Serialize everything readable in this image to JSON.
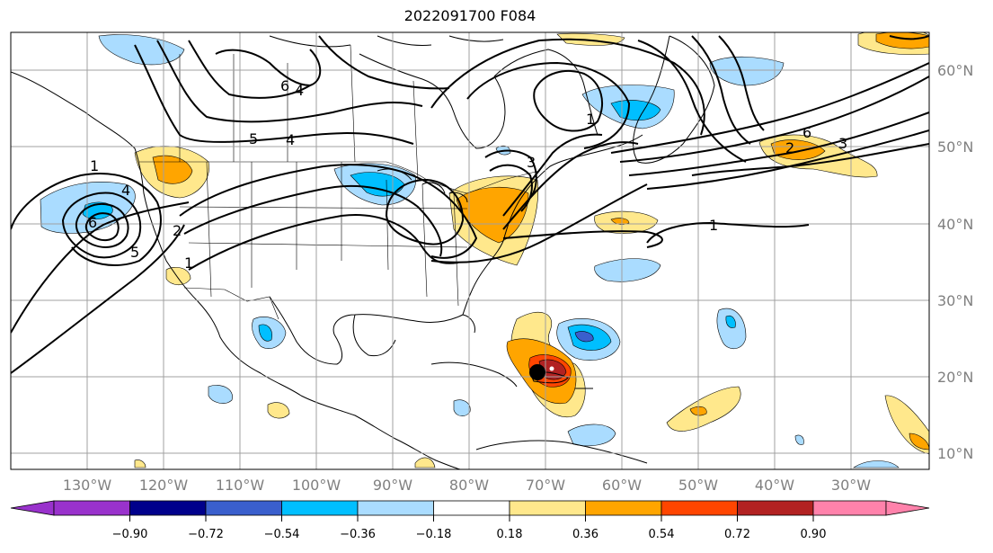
{
  "title": "2022091700 F084",
  "longitude_labels": [
    "130°W",
    "120°W",
    "110°W",
    "100°W",
    "90°W",
    "80°W",
    "70°W",
    "60°W",
    "50°W",
    "40°W",
    "30°W"
  ],
  "latitude_labels": [
    "60°N",
    "50°N",
    "40°N",
    "30°N",
    "20°N",
    "10°N"
  ],
  "contour_labels": [
    "6",
    "4",
    "5",
    "4",
    "1",
    "4",
    "6",
    "5",
    "2",
    "1",
    "3",
    "1",
    "2",
    "6",
    "3",
    "1"
  ],
  "colorbar": {
    "ticks": [
      "−0.90",
      "−0.72",
      "−0.54",
      "−0.36",
      "−0.18",
      "0.18",
      "0.36",
      "0.54",
      "0.72",
      "0.90"
    ],
    "colors": [
      "#9932cc",
      "#00008b",
      "#3a5fcd",
      "#00bfff",
      "#aadcff",
      "#ffffff",
      "#ffe88c",
      "#ffa500",
      "#ff4500",
      "#b22222",
      "#ff82ab"
    ]
  },
  "colors": {
    "land_fill": "#ffffff",
    "grid": "#a0a0a0",
    "contour": "#000000"
  }
}
